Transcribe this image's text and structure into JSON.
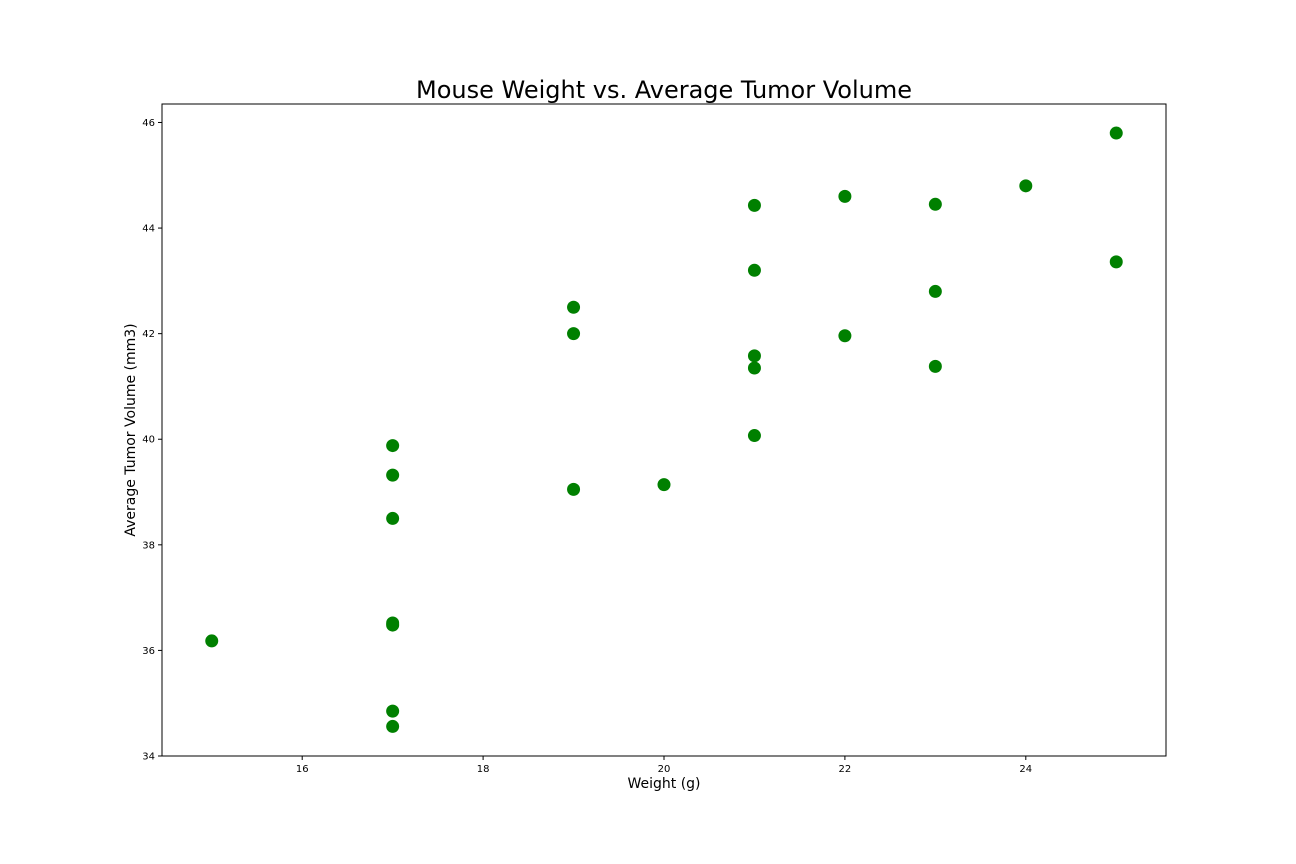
{
  "chart_data": {
    "type": "scatter",
    "title": "Mouse Weight vs. Average Tumor Volume",
    "xlabel": "Weight (g)",
    "ylabel": "Average Tumor Volume (mm3)",
    "xlim": [
      14.45,
      25.55
    ],
    "ylim": [
      34,
      46.35
    ],
    "xticks": [
      16,
      18,
      20,
      22,
      24
    ],
    "yticks": [
      34,
      36,
      38,
      40,
      42,
      44,
      46
    ],
    "grid": false,
    "marker_color": "#008000",
    "points": [
      {
        "x": 15,
        "y": 36.18
      },
      {
        "x": 17,
        "y": 39.88
      },
      {
        "x": 17,
        "y": 39.32
      },
      {
        "x": 17,
        "y": 38.5
      },
      {
        "x": 17,
        "y": 36.52
      },
      {
        "x": 17,
        "y": 36.48
      },
      {
        "x": 17,
        "y": 34.85
      },
      {
        "x": 17,
        "y": 34.56
      },
      {
        "x": 19,
        "y": 42.5
      },
      {
        "x": 19,
        "y": 42.0
      },
      {
        "x": 19,
        "y": 39.05
      },
      {
        "x": 20,
        "y": 39.14
      },
      {
        "x": 21,
        "y": 44.43
      },
      {
        "x": 21,
        "y": 43.2
      },
      {
        "x": 21,
        "y": 41.58
      },
      {
        "x": 21,
        "y": 41.35
      },
      {
        "x": 21,
        "y": 40.07
      },
      {
        "x": 22,
        "y": 44.6
      },
      {
        "x": 22,
        "y": 41.96
      },
      {
        "x": 23,
        "y": 44.45
      },
      {
        "x": 23,
        "y": 42.8
      },
      {
        "x": 23,
        "y": 41.38
      },
      {
        "x": 24,
        "y": 44.8
      },
      {
        "x": 25,
        "y": 45.8
      },
      {
        "x": 25,
        "y": 43.36
      }
    ]
  }
}
